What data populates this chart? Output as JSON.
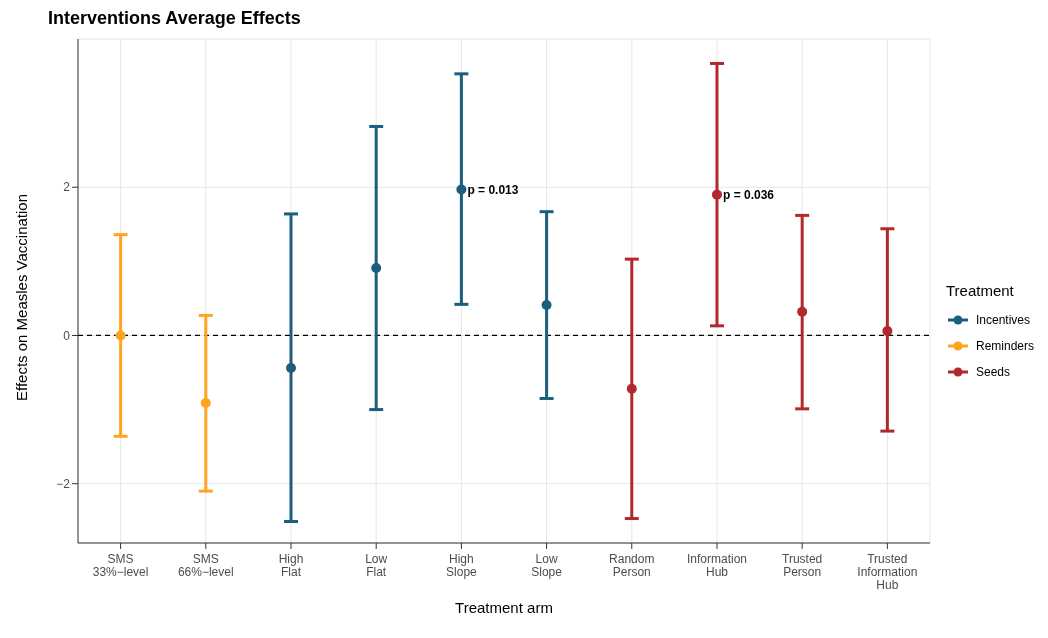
{
  "chart_data": {
    "type": "scatter",
    "title": "Interventions Average Effects",
    "xlabel": "Treatment arm",
    "ylabel": "Effects on Measles Vaccination",
    "legend_title": "Treatment",
    "categories": [
      "SMS\n33%−level",
      "SMS\n66%−level",
      "High\nFlat",
      "Low\nFlat",
      "High\nSlope",
      "Low\nSlope",
      "Random\nPerson",
      "Information\nHub",
      "Trusted\nPerson",
      "Trusted\nInformation\nHub"
    ],
    "series": [
      {
        "name": "Incentives",
        "color": "#1b5e7e",
        "values": [
          null,
          null,
          -0.44,
          0.91,
          1.97,
          0.41,
          null,
          null,
          null,
          null
        ],
        "errors": [
          null,
          null,
          [
            -2.51,
            1.64
          ],
          [
            -1.0,
            2.82
          ],
          [
            0.42,
            3.53
          ],
          [
            -0.85,
            1.67
          ],
          null,
          null,
          null,
          null
        ]
      },
      {
        "name": "Reminders",
        "color": "#ffa41f",
        "values": [
          0.0,
          -0.91,
          null,
          null,
          null,
          null,
          null,
          null,
          null,
          null
        ],
        "errors": [
          [
            -1.36,
            1.36
          ],
          [
            -2.1,
            0.27
          ],
          null,
          null,
          null,
          null,
          null,
          null,
          null,
          null
        ]
      },
      {
        "name": "Seeds",
        "color": "#b2282d",
        "values": [
          null,
          null,
          null,
          null,
          null,
          null,
          -0.72,
          1.9,
          0.32,
          0.06
        ],
        "errors": [
          null,
          null,
          null,
          null,
          null,
          null,
          [
            -2.47,
            1.03
          ],
          [
            0.13,
            3.67
          ],
          [
            -0.99,
            1.62
          ],
          [
            -1.29,
            1.44
          ]
        ]
      }
    ],
    "annotations": [
      {
        "text": "p = 0.013",
        "x": "High\nSlope",
        "y": 1.97
      },
      {
        "text": "p = 0.036",
        "x": "Information\nHub",
        "y": 1.9
      }
    ],
    "ref_lines": [
      {
        "axis": "y",
        "value": 0,
        "line_style": "dashed",
        "color": "#000000"
      }
    ],
    "ylim": [
      -2.8,
      4.0
    ],
    "yticks": [
      -2,
      0,
      2
    ],
    "grid": true,
    "legend": "right",
    "marker": "circle"
  }
}
